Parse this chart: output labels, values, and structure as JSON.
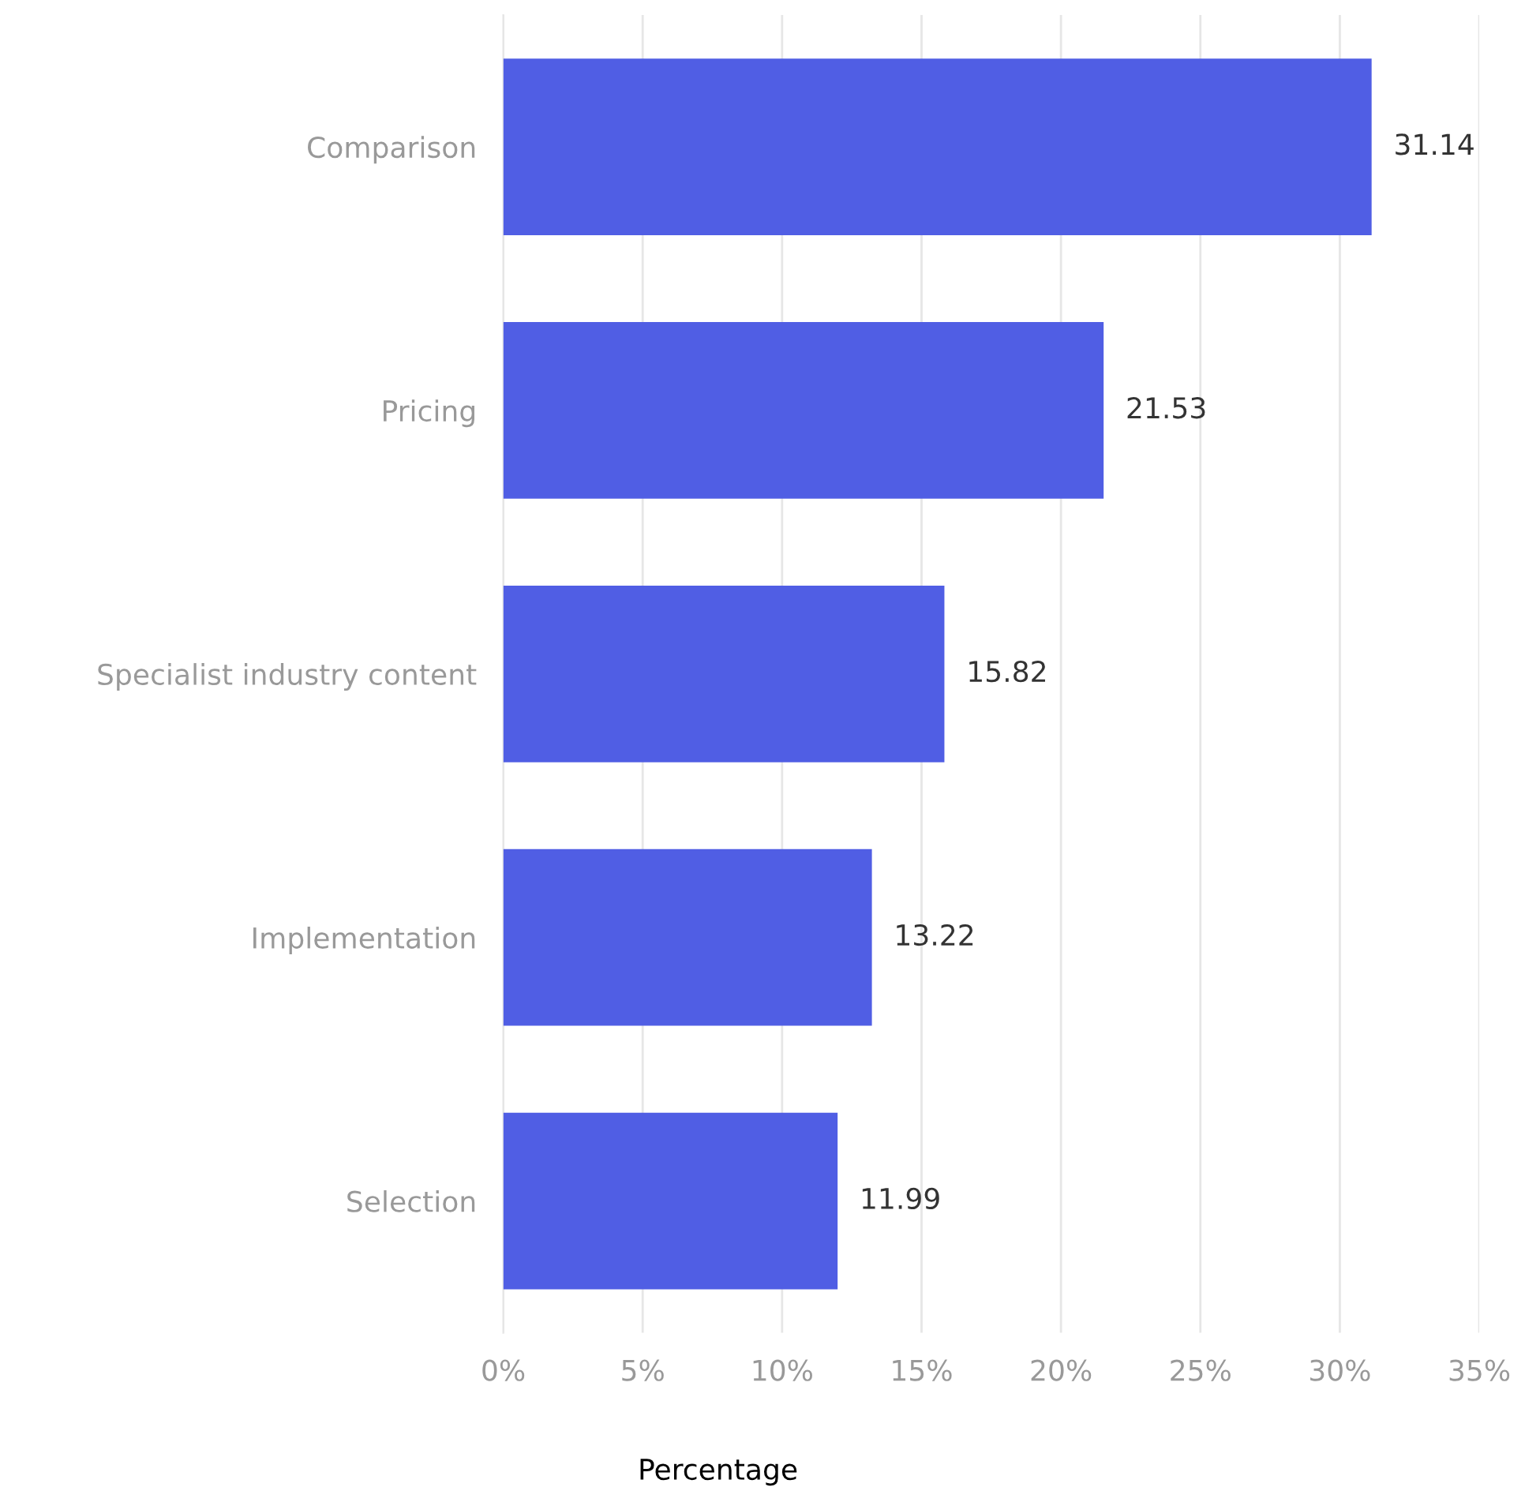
{
  "chart_data": {
    "type": "bar",
    "orientation": "horizontal",
    "xlabel": "Percentage",
    "categories": [
      "Comparison",
      "Pricing",
      "Specialist industry content",
      "Implementation",
      "Selection"
    ],
    "values": [
      31.14,
      21.53,
      15.82,
      13.22,
      11.99
    ],
    "color": "#505ee4",
    "xlim": [
      0,
      35
    ],
    "xticks": [
      {
        "value": 0,
        "label": "0%"
      },
      {
        "value": 5,
        "label": "5%"
      },
      {
        "value": 10,
        "label": "10%"
      },
      {
        "value": 15,
        "label": "15%"
      },
      {
        "value": 20,
        "label": "20%"
      },
      {
        "value": 25,
        "label": "25%"
      },
      {
        "value": 30,
        "label": "30%"
      },
      {
        "value": 35,
        "label": "35%"
      }
    ],
    "grid": "x",
    "data_labels": true
  }
}
